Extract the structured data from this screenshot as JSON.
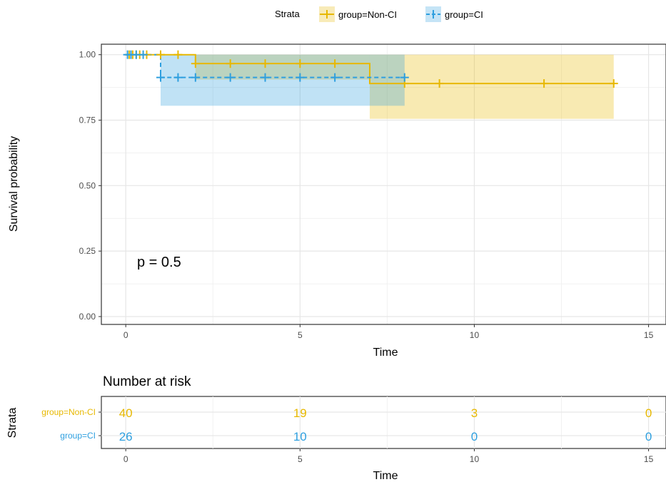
{
  "chart_data": [
    {
      "type": "line",
      "subtype": "kaplan-meier",
      "xlabel": "Time",
      "ylabel": "Survival probability",
      "xlim": [
        -0.7,
        15.5
      ],
      "ylim": [
        -0.03,
        1.04
      ],
      "x_ticks": [
        0,
        5,
        10,
        15
      ],
      "x_tick_labels": [
        "0",
        "5",
        "10",
        "15"
      ],
      "y_ticks": [
        0.0,
        0.25,
        0.5,
        0.75,
        1.0
      ],
      "y_tick_labels": [
        "0.00",
        "0.25",
        "0.50",
        "0.75",
        "1.00"
      ],
      "grid": true,
      "legend": {
        "title": "Strata",
        "placement": "top",
        "entries": [
          "group=Non-CI",
          "group=CI"
        ]
      },
      "annotation": "p = 0.5",
      "series": [
        {
          "name": "group=Non-CI",
          "color": "#E7B800",
          "line_style": "solid",
          "steps": [
            {
              "x": 0,
              "y": 1.0
            },
            {
              "x": 2,
              "y": 0.966
            },
            {
              "x": 7,
              "y": 0.89
            },
            {
              "x": 14,
              "y": 0.89
            }
          ],
          "ci_band": [
            {
              "x0": 2,
              "x1": 7,
              "lower": 0.905,
              "upper": 1.0
            },
            {
              "x0": 7,
              "x1": 14,
              "lower": 0.755,
              "upper": 1.0
            }
          ],
          "censor_x": [
            0.1,
            0.2,
            0.3,
            0.4,
            0.6,
            1.0,
            1.5,
            2.0,
            3.0,
            4.0,
            5.0,
            6.0,
            8.0,
            9.0,
            12.0,
            14.0
          ]
        },
        {
          "name": "group=CI",
          "color": "#2E9FDF",
          "line_style": "dashed",
          "steps": [
            {
              "x": 0,
              "y": 1.0
            },
            {
              "x": 1,
              "y": 0.913
            },
            {
              "x": 8,
              "y": 0.913
            }
          ],
          "ci_band": [
            {
              "x0": 1,
              "x1": 8,
              "lower": 0.805,
              "upper": 1.0
            }
          ],
          "censor_x": [
            0.05,
            0.15,
            0.3,
            0.5,
            1.0,
            1.5,
            2.0,
            3.0,
            4.0,
            5.0,
            6.0,
            8.0
          ]
        }
      ]
    },
    {
      "type": "table",
      "title": "Number at risk",
      "xlabel": "Time",
      "ylabel": "Strata",
      "xlim": [
        -0.7,
        15.5
      ],
      "x_ticks": [
        0,
        5,
        10,
        15
      ],
      "x_tick_labels": [
        "0",
        "5",
        "10",
        "15"
      ],
      "rows": [
        {
          "name": "group=Non-CI",
          "color": "#E7B800",
          "values": [
            "40",
            "19",
            "3",
            "0"
          ]
        },
        {
          "name": "group=CI",
          "color": "#2E9FDF",
          "values": [
            "26",
            "10",
            "0",
            "0"
          ]
        }
      ]
    }
  ]
}
